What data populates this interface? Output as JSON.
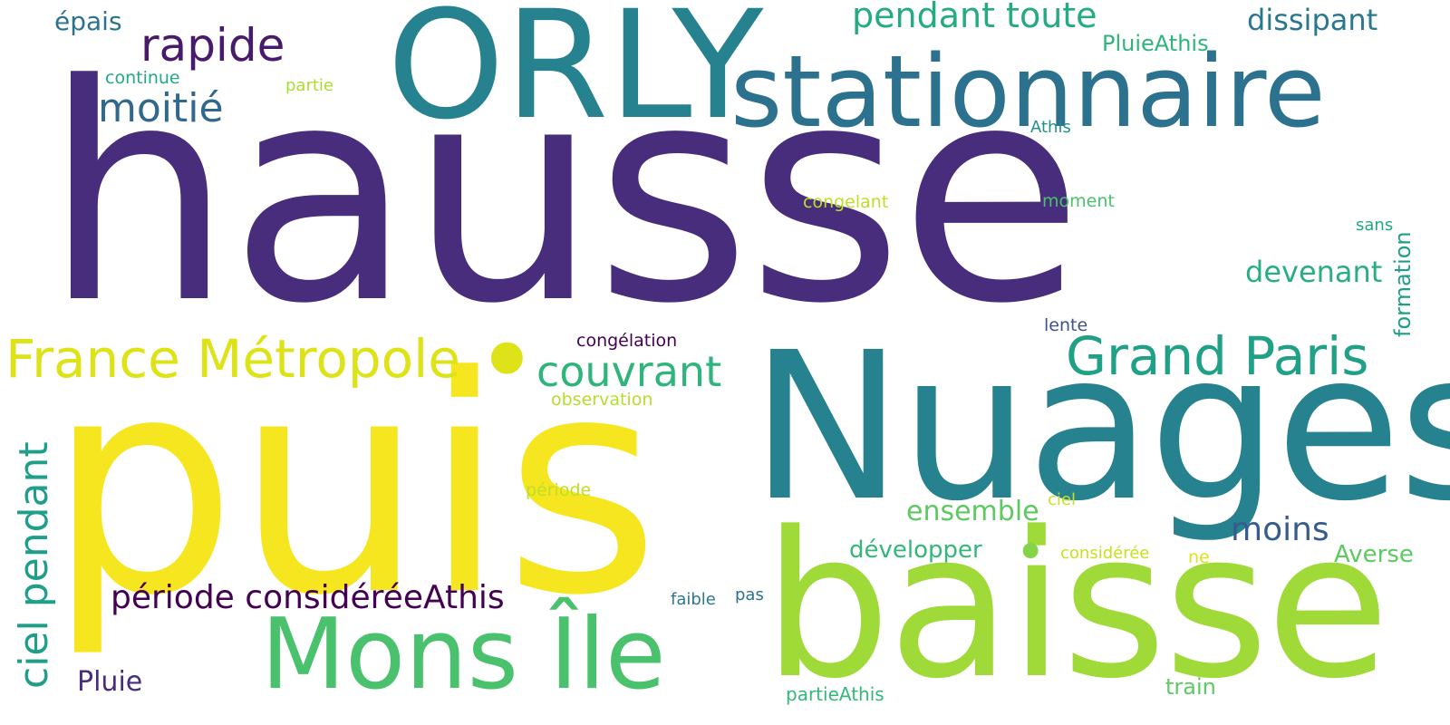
{
  "wordcloud": {
    "palette": {
      "dark_purple": "#440154",
      "indigo": "#472d7b",
      "slate_blue": "#3b528b",
      "steel_blue": "#2c728e",
      "teal": "#21918c",
      "green_teal": "#28ae80",
      "green": "#5ec962",
      "lime": "#addc30",
      "yellow": "#e8e419",
      "bright_yellow": "#f6e620"
    },
    "words": [
      {
        "text": "hausse",
        "color": "#472d7b"
      },
      {
        "text": "puis",
        "color": "#f6e620"
      },
      {
        "text": "Nuages",
        "color": "#26828e"
      },
      {
        "text": "baisse",
        "color": "#a0da39"
      },
      {
        "text": "ORLY",
        "color": "#26828e"
      },
      {
        "text": "stationnaire",
        "color": "#2c728e"
      },
      {
        "text": "Mons Île",
        "color": "#4ac16d"
      },
      {
        "text": "France Métropole",
        "color": "#dde318"
      },
      {
        "text": "Grand Paris",
        "color": "#1fa187"
      },
      {
        "text": "rapide",
        "color": "#481a6c"
      },
      {
        "text": "couvrant",
        "color": "#2fb47c"
      },
      {
        "text": "moitié",
        "color": "#31688e"
      },
      {
        "text": "ciel pendant",
        "color": "#1f9e89"
      },
      {
        "text": "pendant toute",
        "color": "#25ab82"
      },
      {
        "text": "période considéréeAthis",
        "color": "#440154"
      },
      {
        "text": "dissipant",
        "color": "#2a788e"
      },
      {
        "text": "devenant",
        "color": "#28ae80"
      },
      {
        "text": "moins",
        "color": "#365c8d"
      },
      {
        "text": "ensemble",
        "color": "#5ec962"
      },
      {
        "text": "développer",
        "color": "#35b779"
      },
      {
        "text": "Pluie",
        "color": "#472d7b"
      },
      {
        "text": "Averse",
        "color": "#5ec962"
      },
      {
        "text": "épais",
        "color": "#2c728e"
      },
      {
        "text": "PluieAthis",
        "color": "#2fb47c"
      },
      {
        "text": "train",
        "color": "#5ec962"
      },
      {
        "text": "formation",
        "color": "#1f9e89"
      },
      {
        "text": "partieAthis",
        "color": "#35b779"
      },
      {
        "text": "continue",
        "color": "#22a884"
      },
      {
        "text": "partie",
        "color": "#addc30"
      },
      {
        "text": "Athis",
        "color": "#21918c"
      },
      {
        "text": "congelant",
        "color": "#bddf26"
      },
      {
        "text": "moment",
        "color": "#4ac16d"
      },
      {
        "text": "sans",
        "color": "#22a884"
      },
      {
        "text": "lente",
        "color": "#3b528b"
      },
      {
        "text": "congélation",
        "color": "#440154"
      },
      {
        "text": "observation",
        "color": "#b5de2b"
      },
      {
        "text": "période",
        "color": "#bddf26"
      },
      {
        "text": "ciel",
        "color": "#c8e020"
      },
      {
        "text": "considérée",
        "color": "#c8e020"
      },
      {
        "text": "ne",
        "color": "#dde318"
      },
      {
        "text": "faible",
        "color": "#2a788e"
      },
      {
        "text": "pas",
        "color": "#2c728e"
      }
    ],
    "dots": [
      {
        "symbol": "•",
        "color": "#dde318"
      },
      {
        "symbol": "•",
        "color": "#84d44b"
      }
    ]
  }
}
